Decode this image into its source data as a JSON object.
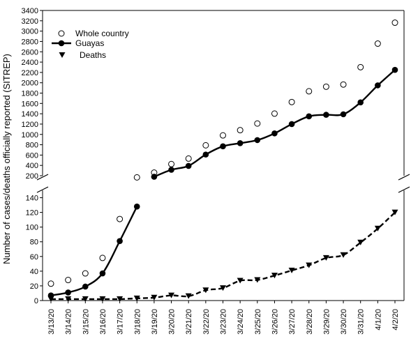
{
  "chart_data": {
    "type": "line",
    "ylabel": "Number of cases/deaths officially reported (SITREP)",
    "xlabel": "",
    "title": "",
    "categories": [
      "3/13/20",
      "3/14/20",
      "3/15/20",
      "3/16/20",
      "3/17/20",
      "3/18/20",
      "3/19/20",
      "3/20/20",
      "3/21/20",
      "3/22/20",
      "3/23/20",
      "3/24/20",
      "3/25/20",
      "3/26/20",
      "3/27/20",
      "3/28/20",
      "3/29/20",
      "3/30/20",
      "3/31/20",
      "4/1/20",
      "4/2/20"
    ],
    "upper_axis": {
      "ylim": [
        200,
        3400
      ],
      "ticks": [
        200,
        400,
        600,
        800,
        1000,
        1200,
        1400,
        1600,
        1800,
        2000,
        2200,
        2400,
        2600,
        2800,
        3000,
        3200,
        3400
      ]
    },
    "lower_axis": {
      "ylim": [
        0,
        150
      ],
      "ticks": [
        0,
        20,
        40,
        60,
        80,
        100,
        120,
        140
      ]
    },
    "axis_break": true,
    "grid": false,
    "legend": {
      "position": "top-left",
      "entries": [
        {
          "name": "Whole country",
          "marker": "open-circle"
        },
        {
          "name": "Guayas",
          "marker": "filled-circle-solid-line"
        },
        {
          "name": "Deaths",
          "marker": "filled-down-triangle"
        }
      ]
    },
    "series": [
      {
        "name": "Whole country",
        "marker": "open-circle",
        "line": "none",
        "values": [
          23,
          28,
          37,
          58,
          111,
          168,
          260,
          426,
          532,
          789,
          981,
          1082,
          1211,
          1403,
          1627,
          1835,
          1924,
          1966,
          2302,
          2758,
          3163
        ]
      },
      {
        "name": "Guayas",
        "marker": "filled-circle",
        "line": "solid",
        "values": [
          7,
          11,
          19,
          37,
          81,
          128,
          180,
          315,
          390,
          610,
          770,
          830,
          890,
          1020,
          1200,
          1350,
          1380,
          1390,
          1620,
          1950,
          2250
        ]
      },
      {
        "name": "Deaths",
        "marker": "filled-down-triangle",
        "line": "dashed",
        "values": [
          2,
          2,
          2,
          2,
          2,
          3,
          4,
          7,
          6,
          14,
          17,
          27,
          28,
          34,
          41,
          48,
          58,
          62,
          79,
          98,
          120
        ]
      }
    ],
    "colors": {
      "ink": "#000000",
      "background": "#ffffff"
    }
  }
}
